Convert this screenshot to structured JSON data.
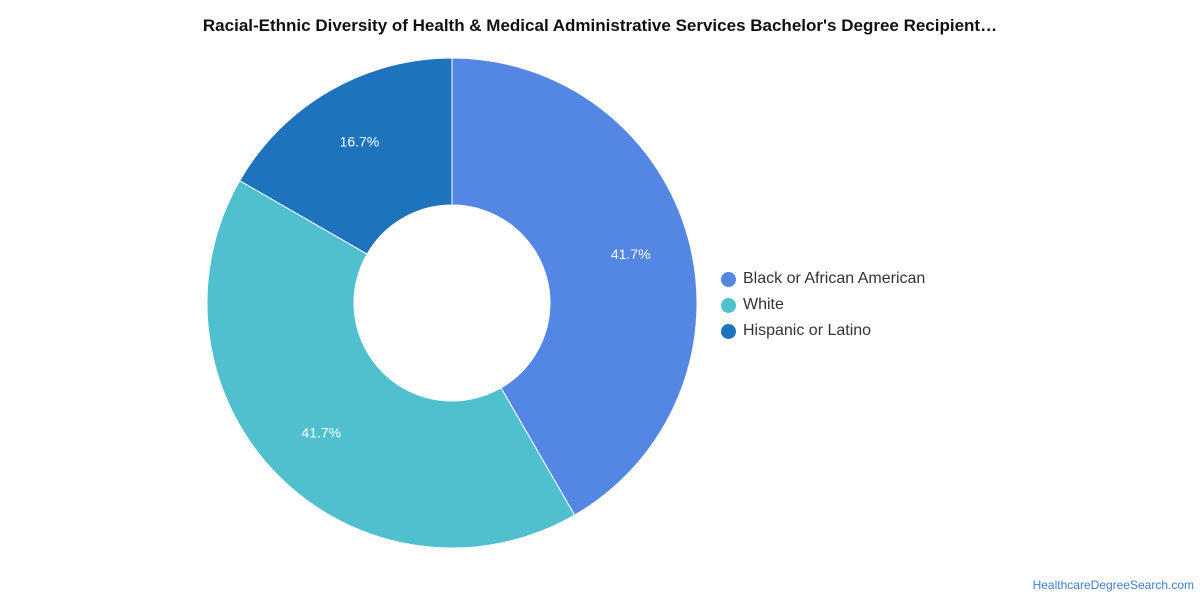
{
  "chart_data": {
    "type": "pie",
    "variant": "donut",
    "title": "Racial-Ethnic Diversity of Health & Medical Administrative Services Bachelor's Degree Recipient…",
    "series": [
      {
        "name": "Black or African American",
        "value": 41.7,
        "label": "41.7%",
        "color": "#5486e3"
      },
      {
        "name": "White",
        "value": 41.7,
        "label": "41.7%",
        "color": "#50c0cf"
      },
      {
        "name": "Hispanic or Latino",
        "value": 16.7,
        "label": "16.7%",
        "color": "#1e73bd"
      }
    ],
    "legend_placement": "right"
  },
  "source": "HealthcareDegreeSearch.com"
}
